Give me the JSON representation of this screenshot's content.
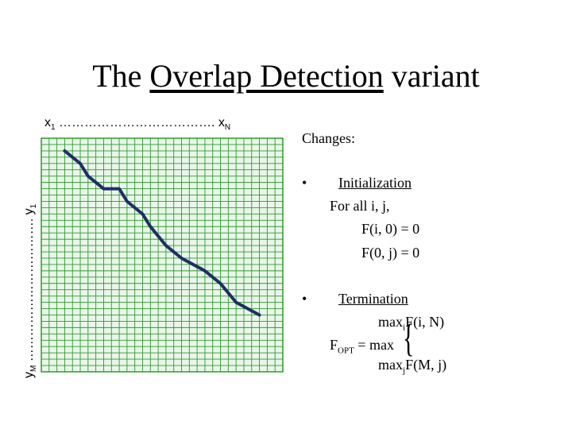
{
  "title": {
    "pre": "The ",
    "underlined": "Overlap Detection",
    "post": " variant"
  },
  "axes": {
    "x_first": "x",
    "x_first_sub": "1",
    "x_dots": " ………………………………. ",
    "x_last": "x",
    "x_last_sub": "N",
    "y_first": "y",
    "y_first_sub": "1",
    "y_dots": " ……………………………. ",
    "y_last": "y",
    "y_last_sub": "M"
  },
  "grid": {
    "columns": 31,
    "rows": 37,
    "line_color": "#2e9a2e",
    "path_color": "#1e2f66"
  },
  "alignment_path_cells": [
    [
      3,
      2
    ],
    [
      5,
      4
    ],
    [
      6,
      6
    ],
    [
      8,
      8
    ],
    [
      10,
      8
    ],
    [
      11,
      10
    ],
    [
      13,
      12
    ],
    [
      14,
      14
    ],
    [
      16,
      17
    ],
    [
      18,
      19
    ],
    [
      21,
      21
    ],
    [
      23,
      23
    ],
    [
      25,
      26
    ],
    [
      28,
      28
    ]
  ],
  "panel": {
    "changes": "Changes:",
    "bullet": "•",
    "init_label": "Initialization",
    "for_all": "For all i, j,",
    "eq1": "F(i, 0) = 0",
    "eq2": "F(0, j) = 0",
    "term_label": "Termination",
    "max_i_pre": "max",
    "max_i_sub": "i",
    "max_i_post": "F(i, N)",
    "fopt_pre": "F",
    "fopt_sub": "OPT",
    "fopt_post": " = max",
    "max_j_pre": "max",
    "max_j_sub": "j",
    "max_j_post": "F(M, j)"
  }
}
